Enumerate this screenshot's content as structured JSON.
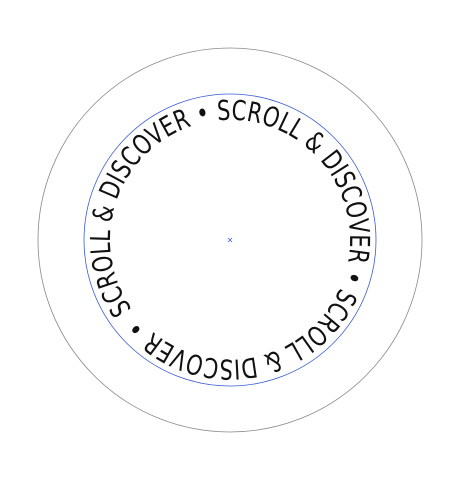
{
  "artboard": {
    "ring_text": "SCROLL & DISCOVER • SCROLL & DISCOVER • SCROLL & DISCOVER • ",
    "text_color": "#111111",
    "outer_ring_color": "#8a8a8a",
    "guide_color": "#3b5bd6",
    "background_color": "#ffffff"
  },
  "icons": {
    "center": "crosshair-center-icon"
  }
}
